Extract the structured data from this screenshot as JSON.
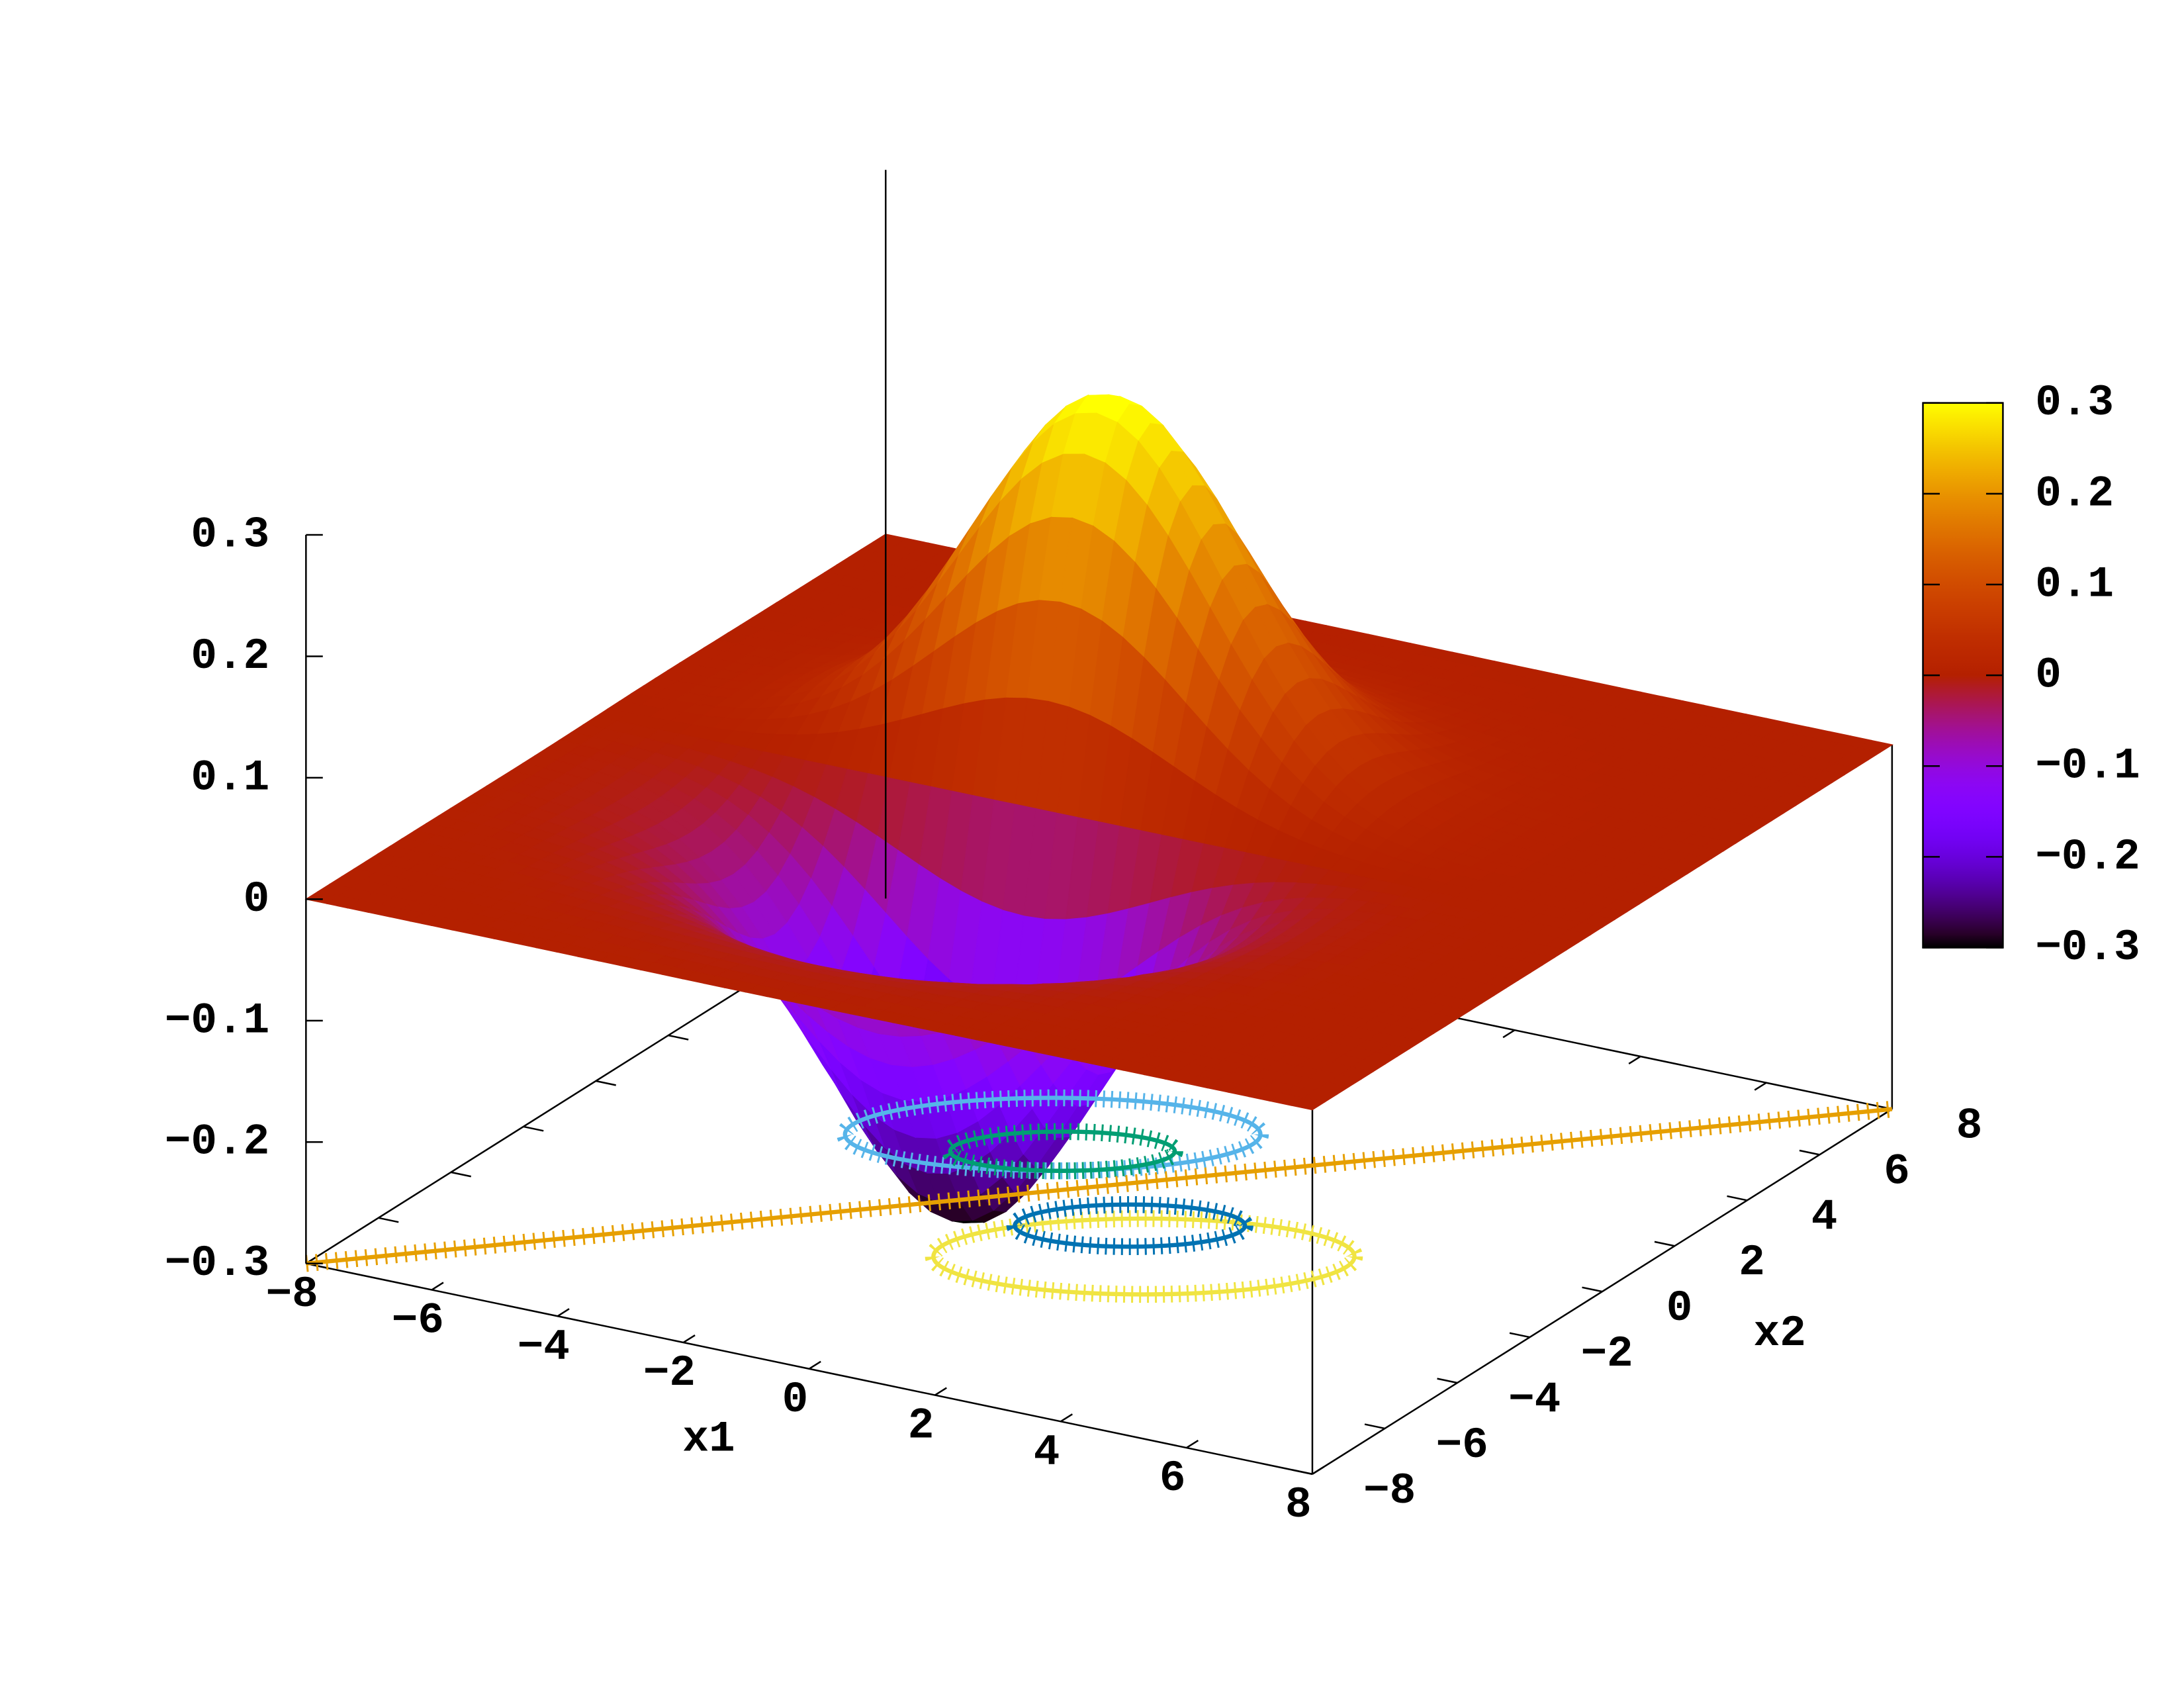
{
  "chart_data": {
    "type": "surface",
    "xlabel": "x1",
    "ylabel": "x2",
    "xlim": [
      -8,
      8
    ],
    "ylim": [
      -8,
      8
    ],
    "zlim": [
      -0.3,
      0.3
    ],
    "xticks": [
      {
        "value": -8,
        "label": "−8"
      },
      {
        "value": -6,
        "label": "−6"
      },
      {
        "value": -4,
        "label": "−4"
      },
      {
        "value": -2,
        "label": "−2"
      },
      0,
      2,
      4,
      6,
      8
    ],
    "yticks": [
      {
        "value": -8,
        "label": "−8"
      },
      {
        "value": -6,
        "label": "−6"
      },
      {
        "value": -4,
        "label": "−4"
      },
      {
        "value": -2,
        "label": "−2"
      },
      0,
      2,
      4,
      6,
      8
    ],
    "zticks": [
      {
        "value": -0.3,
        "label": "−0.3"
      },
      {
        "value": -0.2,
        "label": "−0.2"
      },
      {
        "value": -0.1,
        "label": "−0.1"
      },
      0,
      0.1,
      0.2,
      0.3
    ],
    "cblim": [
      -0.3,
      0.3
    ],
    "cbticks": [
      {
        "value": -0.3,
        "label": "−0.3"
      },
      {
        "value": -0.2,
        "label": "−0.2"
      },
      {
        "value": -0.1,
        "label": "−0.1"
      },
      0,
      0.1,
      0.2,
      0.3
    ]
  }
}
